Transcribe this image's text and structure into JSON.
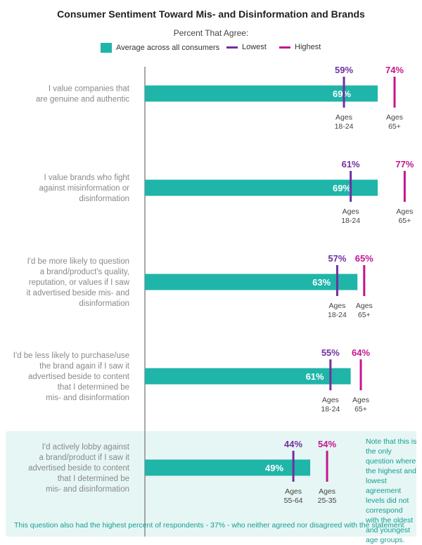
{
  "colors": {
    "average": "#1fb5a8",
    "lowest": "#7030a0",
    "highest": "#c4168d",
    "statement_text": "#8a8a8a",
    "axis": "#8c8c8c",
    "note_text": "#159e93",
    "highlight_bg": "#e6f6f4"
  },
  "chart_data": {
    "type": "bar",
    "title": "Consumer Sentiment Toward Mis- and Disinformation and Brands",
    "subtitle": "Percent That Agree:",
    "legend": {
      "average": "Average across all consumers",
      "lowest": "Lowest",
      "highest": "Highest",
      "placement": "top"
    },
    "orientation": "horizontal",
    "categories": [
      "I value companies that are genuine and authentic",
      "I value brands who fight against misinformation or disinformation",
      "I'd be more likely to question a brand/product's quality, reputation, or values if I saw it advertised beside mis- and disinformation",
      "I'd be less likely to purchase/use the brand again if I saw it advertised beside to content that I determined be mis- and disinformation",
      "I'd actively lobby against a brand/product if I saw it advertised beside to content that I determined be mis- and disinformation"
    ],
    "series": [
      {
        "name": "Average across all consumers",
        "values": [
          69,
          69,
          63,
          61,
          49
        ],
        "labels": [
          "69%",
          "69%",
          "63%",
          "61%",
          "49%"
        ]
      },
      {
        "name": "Lowest",
        "values": [
          59,
          61,
          57,
          55,
          44
        ],
        "labels": [
          "59%",
          "61%",
          "57%",
          "55%",
          "44%"
        ],
        "groups": [
          "Ages 18-24",
          "Ages 18-24",
          "Ages 18-24",
          "Ages 18-24",
          "Ages 55-64"
        ]
      },
      {
        "name": "Highest",
        "values": [
          74,
          77,
          65,
          64,
          54
        ],
        "labels": [
          "74%",
          "77%",
          "65%",
          "64%",
          "54%"
        ],
        "groups": [
          "Ages 65+",
          "Ages 65+",
          "Ages 65+",
          "Ages 65+",
          "Ages 25-35"
        ]
      }
    ],
    "xlim": [
      0,
      85
    ],
    "grid": false
  },
  "statement_lines": [
    [
      "I value companies that",
      "are genuine and authentic"
    ],
    [
      "I value brands who fight",
      "against misinformation or",
      "disinformation"
    ],
    [
      "I'd be more likely to question",
      "a brand/product's quality,",
      "reputation, or values if I saw",
      "it advertised beside mis- and",
      "disinformation"
    ],
    [
      "I'd be less likely to purchase/use",
      "the brand again if I saw it",
      "advertised beside to content",
      "that I determined be",
      "mis- and disinformation"
    ],
    [
      "I'd actively lobby against",
      "a brand/product if I saw it",
      "advertised beside to content",
      "that I determined be",
      "mis- and disinformation"
    ]
  ],
  "age_label_lines": {
    "lowest": [
      [
        "Ages",
        "18-24"
      ],
      [
        "Ages",
        "18-24"
      ],
      [
        "Ages",
        "18-24"
      ],
      [
        "Ages",
        "18-24"
      ],
      [
        "Ages",
        "55-64"
      ]
    ],
    "highest": [
      [
        "Ages",
        "65+"
      ],
      [
        "Ages",
        "65+"
      ],
      [
        "Ages",
        "65+"
      ],
      [
        "Ages",
        "65+"
      ],
      [
        "Ages",
        "25-35"
      ]
    ]
  },
  "side_note": "Note that this is the only question where the highest and lowest agreement levels did not correspond with the oldest and youngest age groups.",
  "footer_note": "This question also had the highest percent of respondents - 37% - who neither agreed nor disagreed with the statement"
}
